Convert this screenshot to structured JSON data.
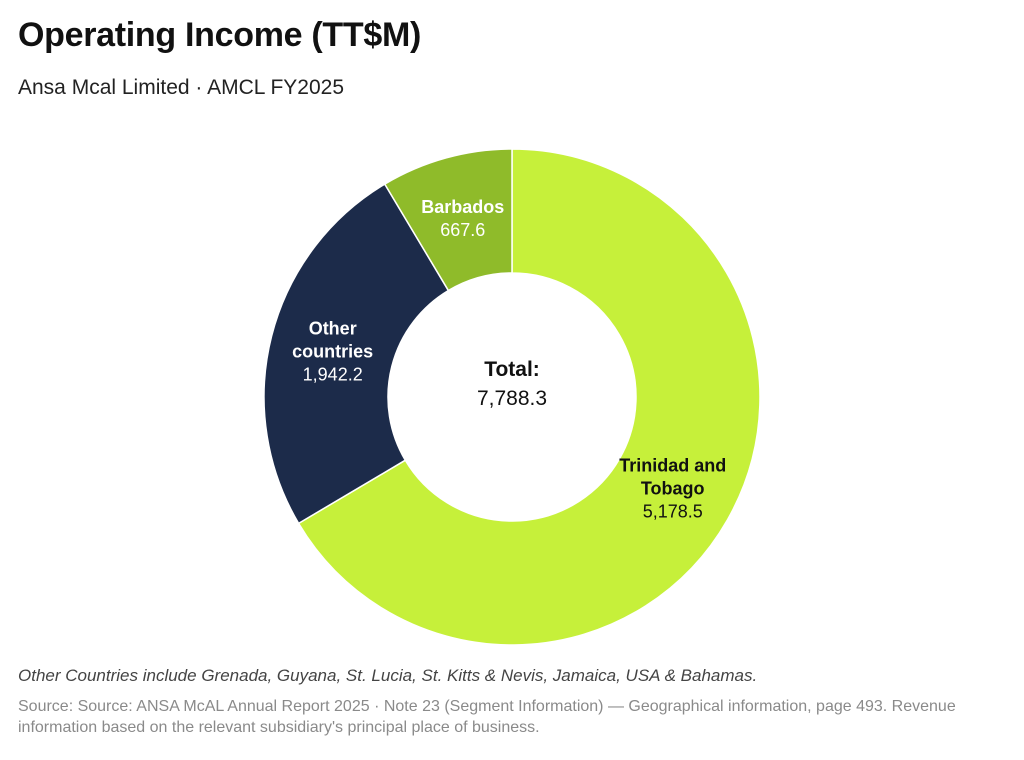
{
  "header": {
    "title": "Operating Income (TT$M)",
    "subtitle": "Ansa Mcal Limited · AMCL FY2025"
  },
  "chart_data": {
    "type": "pie",
    "variant": "donut",
    "title": "Operating Income (TT$M)",
    "slices": [
      {
        "label_lines": [
          "Trinidad and",
          "Tobago"
        ],
        "value": 5178.5,
        "value_label": "5,178.5",
        "color": "#c6f03a",
        "text_color": "#111111"
      },
      {
        "label_lines": [
          "Other",
          "countries"
        ],
        "value": 1942.2,
        "value_label": "1,942.2",
        "color": "#1c2b4a",
        "text_color": "#ffffff"
      },
      {
        "label_lines": [
          "Barbados"
        ],
        "value": 667.6,
        "value_label": "667.6",
        "color": "#8fbb2a",
        "text_color": "#ffffff"
      }
    ],
    "center": {
      "label": "Total:",
      "value": "7,788.3"
    }
  },
  "footer": {
    "note": "Other Countries include Grenada, Guyana, St. Lucia, St. Kitts & Nevis, Jamaica, USA & Bahamas.",
    "source": "Source: Source: ANSA McAL Annual Report 2025 · Note 23 (Segment Information) — Geographical information, page 493. Revenue information based on the relevant subsidiary's principal place of business."
  }
}
